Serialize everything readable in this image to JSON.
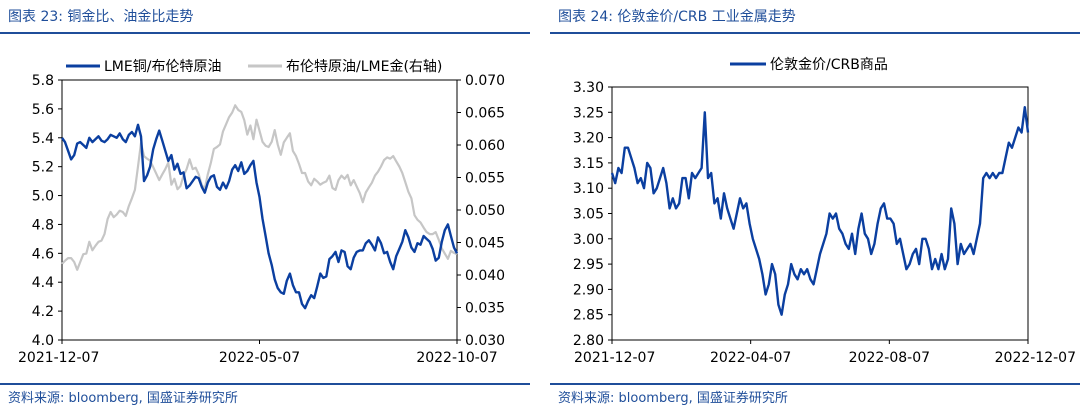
{
  "left": {
    "title": "图表 23:  铜金比、油金比走势",
    "source": "资料来源:  bloomberg,  国盛证券研究所"
  },
  "right": {
    "title": "图表 24:  伦敦金价/CRB 工业金属走势",
    "source": "资料来源:  bloomberg,  国盛证券研究所"
  },
  "colors": {
    "navy": "#0b3fa0",
    "gray": "#c6c6c6",
    "brand": "#1f4e9a"
  },
  "chart_data": [
    {
      "type": "line",
      "title": "",
      "xlabel": "",
      "ylabel": "",
      "y2label": "",
      "x_ticks": [
        "2021-12-07",
        "2022-05-07",
        "2022-10-07"
      ],
      "y_ticks": [
        4.0,
        4.2,
        4.4,
        4.6,
        4.8,
        5.0,
        5.2,
        5.4,
        5.6,
        5.8
      ],
      "y2_ticks": [
        0.03,
        0.035,
        0.04,
        0.045,
        0.05,
        0.055,
        0.06,
        0.065,
        0.07
      ],
      "y2_tick_labels": [
        "0.030",
        "0.035",
        "0.040",
        "0.045",
        "0.050",
        "0.055",
        "0.060",
        "0.065",
        "0.070"
      ],
      "ylim": [
        4.0,
        5.8
      ],
      "y2lim": [
        0.03,
        0.07
      ],
      "legend_position": "top",
      "grid": false,
      "series": [
        {
          "name": "LME铜/布伦特原油",
          "color": "#0b3fa0",
          "axis": "left",
          "values": [
            5.4,
            5.37,
            5.31,
            5.25,
            5.28,
            5.36,
            5.37,
            5.35,
            5.33,
            5.4,
            5.37,
            5.39,
            5.41,
            5.38,
            5.37,
            5.39,
            5.42,
            5.41,
            5.4,
            5.43,
            5.39,
            5.37,
            5.42,
            5.44,
            5.41,
            5.49,
            5.41,
            5.1,
            5.14,
            5.2,
            5.32,
            5.39,
            5.45,
            5.38,
            5.31,
            5.24,
            5.28,
            5.18,
            5.22,
            5.15,
            5.16,
            5.05,
            5.07,
            5.1,
            5.13,
            5.12,
            5.06,
            5.02,
            5.09,
            5.13,
            5.14,
            5.06,
            5.04,
            5.09,
            5.05,
            5.1,
            5.18,
            5.21,
            5.17,
            5.23,
            5.15,
            5.17,
            5.21,
            5.24,
            5.09,
            4.99,
            4.84,
            4.72,
            4.6,
            4.52,
            4.42,
            4.36,
            4.33,
            4.32,
            4.41,
            4.46,
            4.38,
            4.33,
            4.33,
            4.25,
            4.22,
            4.27,
            4.31,
            4.29,
            4.37,
            4.46,
            4.43,
            4.44,
            4.56,
            4.58,
            4.61,
            4.54,
            4.62,
            4.61,
            4.51,
            4.49,
            4.57,
            4.61,
            4.62,
            4.62,
            4.67,
            4.69,
            4.66,
            4.62,
            4.71,
            4.67,
            4.6,
            4.61,
            4.54,
            4.49,
            4.58,
            4.63,
            4.68,
            4.76,
            4.71,
            4.64,
            4.61,
            4.67,
            4.66,
            4.72,
            4.7,
            4.68,
            4.63,
            4.55,
            4.57,
            4.68,
            4.76,
            4.8,
            4.72,
            4.64,
            4.6
          ]
        },
        {
          "name": "布伦特原油/LME金(右轴)",
          "color": "#c6c6c6",
          "axis": "right",
          "values": [
            0.0417,
            0.0422,
            0.0426,
            0.0426,
            0.042,
            0.0408,
            0.042,
            0.0432,
            0.0433,
            0.0451,
            0.0438,
            0.0445,
            0.0451,
            0.0453,
            0.0463,
            0.0486,
            0.0497,
            0.0489,
            0.0493,
            0.0499,
            0.0497,
            0.0491,
            0.0506,
            0.0518,
            0.0531,
            0.0567,
            0.0603,
            0.0583,
            0.0579,
            0.0576,
            0.0566,
            0.0556,
            0.0546,
            0.0555,
            0.0563,
            0.0573,
            0.0539,
            0.0548,
            0.0532,
            0.0537,
            0.0553,
            0.0563,
            0.0578,
            0.0563,
            0.0565,
            0.0555,
            0.0538,
            0.0533,
            0.0555,
            0.0573,
            0.0594,
            0.0597,
            0.0601,
            0.0621,
            0.0632,
            0.0643,
            0.065,
            0.0661,
            0.0654,
            0.0651,
            0.0638,
            0.0616,
            0.063,
            0.0609,
            0.0639,
            0.0622,
            0.0605,
            0.0599,
            0.0597,
            0.0605,
            0.0623,
            0.0601,
            0.0585,
            0.0604,
            0.0611,
            0.0618,
            0.0591,
            0.0583,
            0.0571,
            0.0557,
            0.0557,
            0.0544,
            0.0538,
            0.0548,
            0.0544,
            0.0539,
            0.0542,
            0.0544,
            0.0553,
            0.0534,
            0.0531,
            0.0546,
            0.0553,
            0.0548,
            0.0554,
            0.0538,
            0.0546,
            0.0536,
            0.0526,
            0.0512,
            0.0527,
            0.0535,
            0.0542,
            0.0553,
            0.0559,
            0.0567,
            0.0577,
            0.0581,
            0.0579,
            0.0583,
            0.0575,
            0.0567,
            0.0557,
            0.0543,
            0.0528,
            0.0518,
            0.0492,
            0.0485,
            0.0481,
            0.0473,
            0.0466,
            0.0463,
            0.0463,
            0.0466,
            0.0454,
            0.0441,
            0.0433,
            0.0425,
            0.0437,
            0.0434,
            0.0432
          ]
        }
      ]
    },
    {
      "type": "line",
      "title": "",
      "xlabel": "",
      "ylabel": "",
      "x_ticks": [
        "2021-12-07",
        "2022-04-07",
        "2022-08-07",
        "2022-12-07"
      ],
      "y_ticks": [
        2.8,
        2.85,
        2.9,
        2.95,
        3.0,
        3.05,
        3.1,
        3.15,
        3.2,
        3.25,
        3.3
      ],
      "y_tick_labels": [
        "2.80",
        "2.85",
        "2.90",
        "2.95",
        "3.00",
        "3.05",
        "3.10",
        "3.15",
        "3.20",
        "3.25",
        "3.30"
      ],
      "ylim": [
        2.8,
        3.3
      ],
      "legend_position": "top",
      "grid": false,
      "series": [
        {
          "name": "伦敦金价/CRB商品",
          "color": "#0b3fa0",
          "values": [
            3.13,
            3.11,
            3.14,
            3.13,
            3.18,
            3.18,
            3.16,
            3.14,
            3.11,
            3.12,
            3.1,
            3.15,
            3.14,
            3.09,
            3.1,
            3.12,
            3.14,
            3.11,
            3.06,
            3.08,
            3.06,
            3.07,
            3.12,
            3.12,
            3.08,
            3.13,
            3.12,
            3.13,
            3.14,
            3.25,
            3.12,
            3.13,
            3.07,
            3.08,
            3.04,
            3.09,
            3.06,
            3.04,
            3.02,
            3.05,
            3.08,
            3.06,
            3.07,
            3.03,
            3.0,
            2.98,
            2.96,
            2.93,
            2.89,
            2.91,
            2.95,
            2.93,
            2.87,
            2.85,
            2.89,
            2.91,
            2.95,
            2.93,
            2.92,
            2.94,
            2.93,
            2.94,
            2.92,
            2.91,
            2.94,
            2.97,
            2.99,
            3.01,
            3.05,
            3.04,
            3.05,
            3.02,
            3.01,
            2.99,
            2.98,
            3.01,
            2.97,
            3.02,
            3.05,
            3.01,
            3.0,
            2.97,
            2.99,
            3.03,
            3.06,
            3.07,
            3.04,
            3.04,
            3.03,
            2.99,
            3.0,
            2.97,
            2.94,
            2.95,
            2.97,
            2.98,
            2.95,
            3.0,
            3.0,
            2.98,
            2.94,
            2.96,
            2.94,
            2.97,
            2.94,
            2.96,
            3.06,
            3.03,
            2.95,
            2.99,
            2.97,
            2.98,
            2.99,
            2.97,
            3.0,
            3.03,
            3.12,
            3.13,
            3.12,
            3.13,
            3.12,
            3.13,
            3.13,
            3.16,
            3.19,
            3.18,
            3.2,
            3.22,
            3.21,
            3.26,
            3.21
          ]
        }
      ]
    }
  ]
}
